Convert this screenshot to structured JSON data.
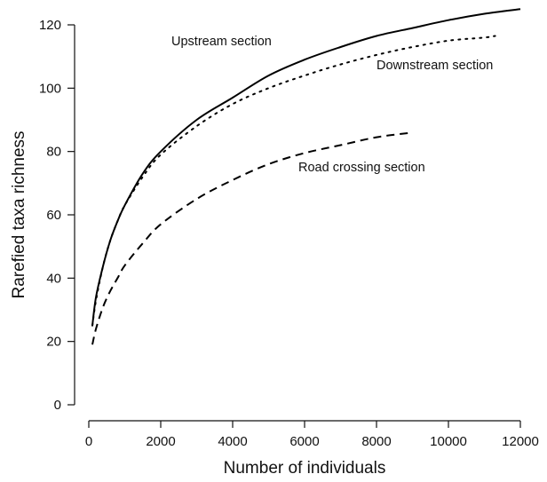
{
  "chart_data": {
    "type": "line",
    "title": "",
    "xlabel": "Number of individuals",
    "ylabel": "Rarefied taxa richness",
    "xlim": [
      0,
      12000
    ],
    "ylim": [
      0,
      120
    ],
    "xticks": [
      0,
      2000,
      4000,
      6000,
      8000,
      10000,
      12000
    ],
    "yticks": [
      0,
      20,
      40,
      60,
      80,
      100,
      120
    ],
    "grid": false,
    "legend": "none (series labelled directly on the plot)",
    "series": [
      {
        "name": "Upstream section",
        "line_style": "solid",
        "x": [
          100,
          200,
          400,
          600,
          800,
          1000,
          1500,
          2000,
          3000,
          4000,
          5000,
          6000,
          7000,
          8000,
          9000,
          10000,
          11000,
          12000
        ],
        "y": [
          25,
          34,
          44,
          52,
          58,
          63,
          73,
          80,
          90,
          97,
          104,
          109,
          113,
          116.5,
          119,
          121.5,
          123.5,
          125
        ]
      },
      {
        "name": "Downstream section",
        "line_style": "dotted",
        "x": [
          100,
          200,
          400,
          600,
          800,
          1000,
          1500,
          2000,
          3000,
          4000,
          5000,
          6000,
          7000,
          8000,
          9000,
          10000,
          11000,
          11300
        ],
        "y": [
          25,
          33,
          44,
          52,
          58,
          63,
          72,
          79,
          88,
          95,
          100,
          104,
          107.5,
          110.5,
          113,
          115,
          116,
          116.5
        ]
      },
      {
        "name": "Road crossing section",
        "line_style": "dashed",
        "x": [
          100,
          200,
          400,
          600,
          800,
          1000,
          1500,
          2000,
          3000,
          4000,
          5000,
          6000,
          7000,
          8000,
          9000
        ],
        "y": [
          19,
          24,
          31,
          36,
          40,
          44,
          51,
          57,
          65,
          71,
          76,
          79.5,
          82,
          84.5,
          86
        ]
      }
    ]
  }
}
